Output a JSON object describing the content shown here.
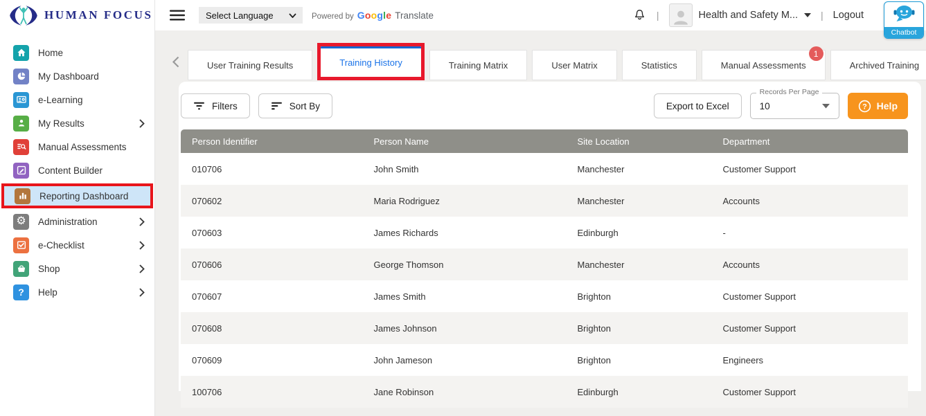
{
  "colors": {
    "brand_navy": "#252C88",
    "brand_teal": "#3EC0B5",
    "active_tab_blue": "#1A73E8",
    "annotation_red": "#E8192C",
    "sidebar_active_bg": "#CEE5F8",
    "table_header_gray": "#8F8F89",
    "row_alt_gray": "#F4F3F1",
    "help_orange": "#F7941D",
    "chatbot_blue": "#29A5DC",
    "badge_red": "#E45B5B"
  },
  "header": {
    "brand": "HUMAN FOCUS",
    "menu_icon": "hamburger-icon",
    "language_select": {
      "value": "Select Language",
      "caret_icon": "select-caret-icon"
    },
    "powered_by": "Powered by",
    "google_letters": [
      {
        "ch": "G",
        "color": "#4285F4"
      },
      {
        "ch": "o",
        "color": "#EA4335"
      },
      {
        "ch": "o",
        "color": "#FBBC05"
      },
      {
        "ch": "g",
        "color": "#4285F4"
      },
      {
        "ch": "l",
        "color": "#34A853"
      },
      {
        "ch": "e",
        "color": "#EA4335"
      }
    ],
    "translate": "Translate",
    "bell_icon": "bell-icon",
    "separator": "|",
    "profile": {
      "name": "Health and Safety M...",
      "avatar_icon": "person-icon",
      "caret_icon": "caret-down-icon"
    },
    "logout": "Logout",
    "chatbot": {
      "label": "Chatbot",
      "icon": "chatbot-icon"
    }
  },
  "sidebar": {
    "items": [
      {
        "label": "Home",
        "icon": "home-icon",
        "color": "#14A3AB",
        "expandable": false,
        "active": false,
        "annotated": false
      },
      {
        "label": "My Dashboard",
        "icon": "dashboard-pie-icon",
        "color": "#7282C6",
        "expandable": false,
        "active": false,
        "annotated": false
      },
      {
        "label": "e-Learning",
        "icon": "elearning-icon",
        "color": "#2A96D4",
        "expandable": false,
        "active": false,
        "annotated": false
      },
      {
        "label": "My Results",
        "icon": "my-results-icon",
        "color": "#57AE46",
        "expandable": true,
        "active": false,
        "annotated": false
      },
      {
        "label": "Manual Assessments",
        "icon": "manual-assessments-icon",
        "color": "#E04038",
        "expandable": false,
        "active": false,
        "annotated": false
      },
      {
        "label": "Content Builder",
        "icon": "content-builder-icon",
        "color": "#9163C1",
        "expandable": false,
        "active": false,
        "annotated": false
      },
      {
        "label": "Reporting Dashboard",
        "icon": "reporting-bars-icon",
        "color": "#B3763C",
        "expandable": false,
        "active": true,
        "annotated": true
      },
      {
        "label": "Administration",
        "icon": "administration-gear-icon",
        "color": "#7D7D7D",
        "expandable": true,
        "active": false,
        "annotated": false
      },
      {
        "label": "e-Checklist",
        "icon": "checklist-icon",
        "color": "#EC7140",
        "expandable": true,
        "active": false,
        "annotated": false
      },
      {
        "label": "Shop",
        "icon": "shop-basket-icon",
        "color": "#41A478",
        "expandable": true,
        "active": false,
        "annotated": false
      },
      {
        "label": "Help",
        "icon": "help-question-icon",
        "color": "#2F92E0",
        "expandable": true,
        "active": false,
        "annotated": false
      }
    ]
  },
  "tabs": {
    "scroll_left_icon": "chevron-left-icon",
    "scroll_right_icon": "chevron-right-icon",
    "items": [
      {
        "label": "User Training Results",
        "active": false,
        "annotated": false,
        "badge": null
      },
      {
        "label": "Training History",
        "active": true,
        "annotated": true,
        "badge": null
      },
      {
        "label": "Training Matrix",
        "active": false,
        "annotated": false,
        "badge": null
      },
      {
        "label": "User Matrix",
        "active": false,
        "annotated": false,
        "badge": null
      },
      {
        "label": "Statistics",
        "active": false,
        "annotated": false,
        "badge": null
      },
      {
        "label": "Manual Assessments",
        "active": false,
        "annotated": false,
        "badge": "1"
      },
      {
        "label": "Archived Training",
        "active": false,
        "annotated": false,
        "badge": null
      }
    ]
  },
  "toolbar": {
    "filters": "Filters",
    "filters_icon": "filter-lines-icon",
    "sort_by": "Sort By",
    "sort_icon": "sort-lines-icon",
    "export": "Export to Excel",
    "records_per_page": {
      "label": "Records Per Page",
      "value": "10",
      "caret_icon": "caret-down-icon"
    },
    "help": "Help",
    "help_icon": "question-circle-icon"
  },
  "table": {
    "headers": [
      "Person Identifier",
      "Person Name",
      "Site Location",
      "Department"
    ],
    "rows": [
      [
        "010706",
        "John Smith",
        "Manchester",
        "Customer Support"
      ],
      [
        "070602",
        "Maria Rodriguez",
        "Manchester",
        "Accounts"
      ],
      [
        "070603",
        "James Richards",
        "Edinburgh",
        "-"
      ],
      [
        "070606",
        "George Thomson",
        "Manchester",
        "Accounts"
      ],
      [
        "070607",
        "James Smith",
        "Brighton",
        "Customer Support"
      ],
      [
        "070608",
        "James Johnson",
        "Brighton",
        "Customer Support"
      ],
      [
        "070609",
        "John Jameson",
        "Brighton",
        "Engineers"
      ],
      [
        "100706",
        "Jane Robinson",
        "Edinburgh",
        "Customer Support"
      ]
    ]
  }
}
